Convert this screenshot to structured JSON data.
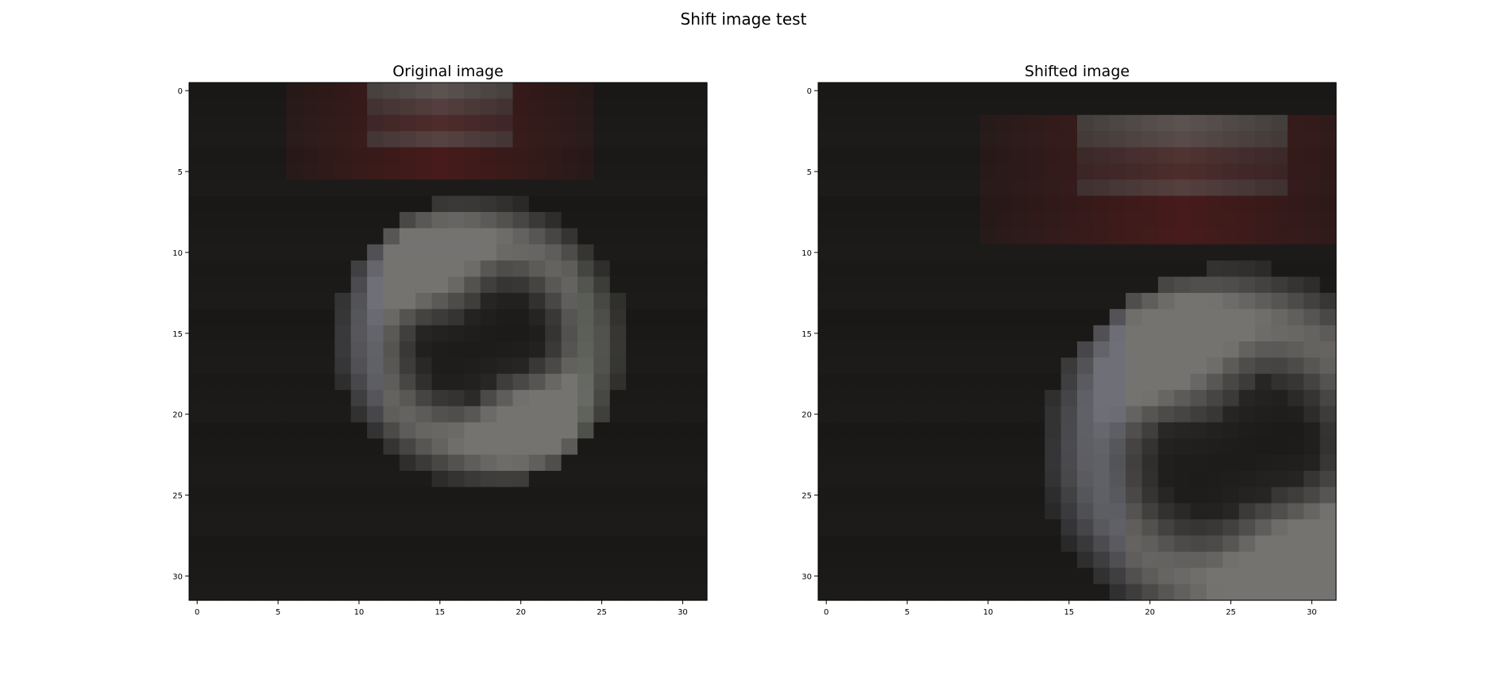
{
  "figure": {
    "title": "Shift image test"
  },
  "chart_data": [
    {
      "type": "heatmap",
      "title": "Original image",
      "xlabel": "",
      "ylabel": "",
      "xlim": [
        -0.5,
        31.5
      ],
      "ylim": [
        31.5,
        -0.5
      ],
      "xticks": [
        0,
        5,
        10,
        15,
        20,
        25,
        30
      ],
      "yticks": [
        0,
        5,
        10,
        15,
        20,
        25,
        30
      ],
      "grid": false,
      "shape": [
        32,
        32
      ],
      "palette": {
        "dark": "#1c1a19",
        "gray": "#7d7b78",
        "blue": "#6f7486",
        "red": "#5a1c1c",
        "green": "#5f6a5d"
      },
      "content": "28x28 patch: red/gray band at top, bright gray ring with dark hollow centre",
      "shift": [
        0,
        0
      ]
    },
    {
      "type": "heatmap",
      "title": "Shifted image",
      "xlabel": "",
      "ylabel": "",
      "xlim": [
        -0.5,
        31.5
      ],
      "ylim": [
        31.5,
        -0.5
      ],
      "xticks": [
        0,
        5,
        10,
        15,
        20,
        25,
        30
      ],
      "yticks": [
        0,
        5,
        10,
        15,
        20,
        25,
        30
      ],
      "grid": false,
      "shape": [
        32,
        32
      ],
      "palette": {
        "dark": "#1b1a19",
        "gray": "#7d7b78",
        "blue": "#6f7486",
        "red": "#5a1c1c",
        "green": "#5f6a5d"
      },
      "content": "same content zoomed ~1.3x and shifted down-right",
      "shift": [
        3,
        3
      ]
    }
  ]
}
